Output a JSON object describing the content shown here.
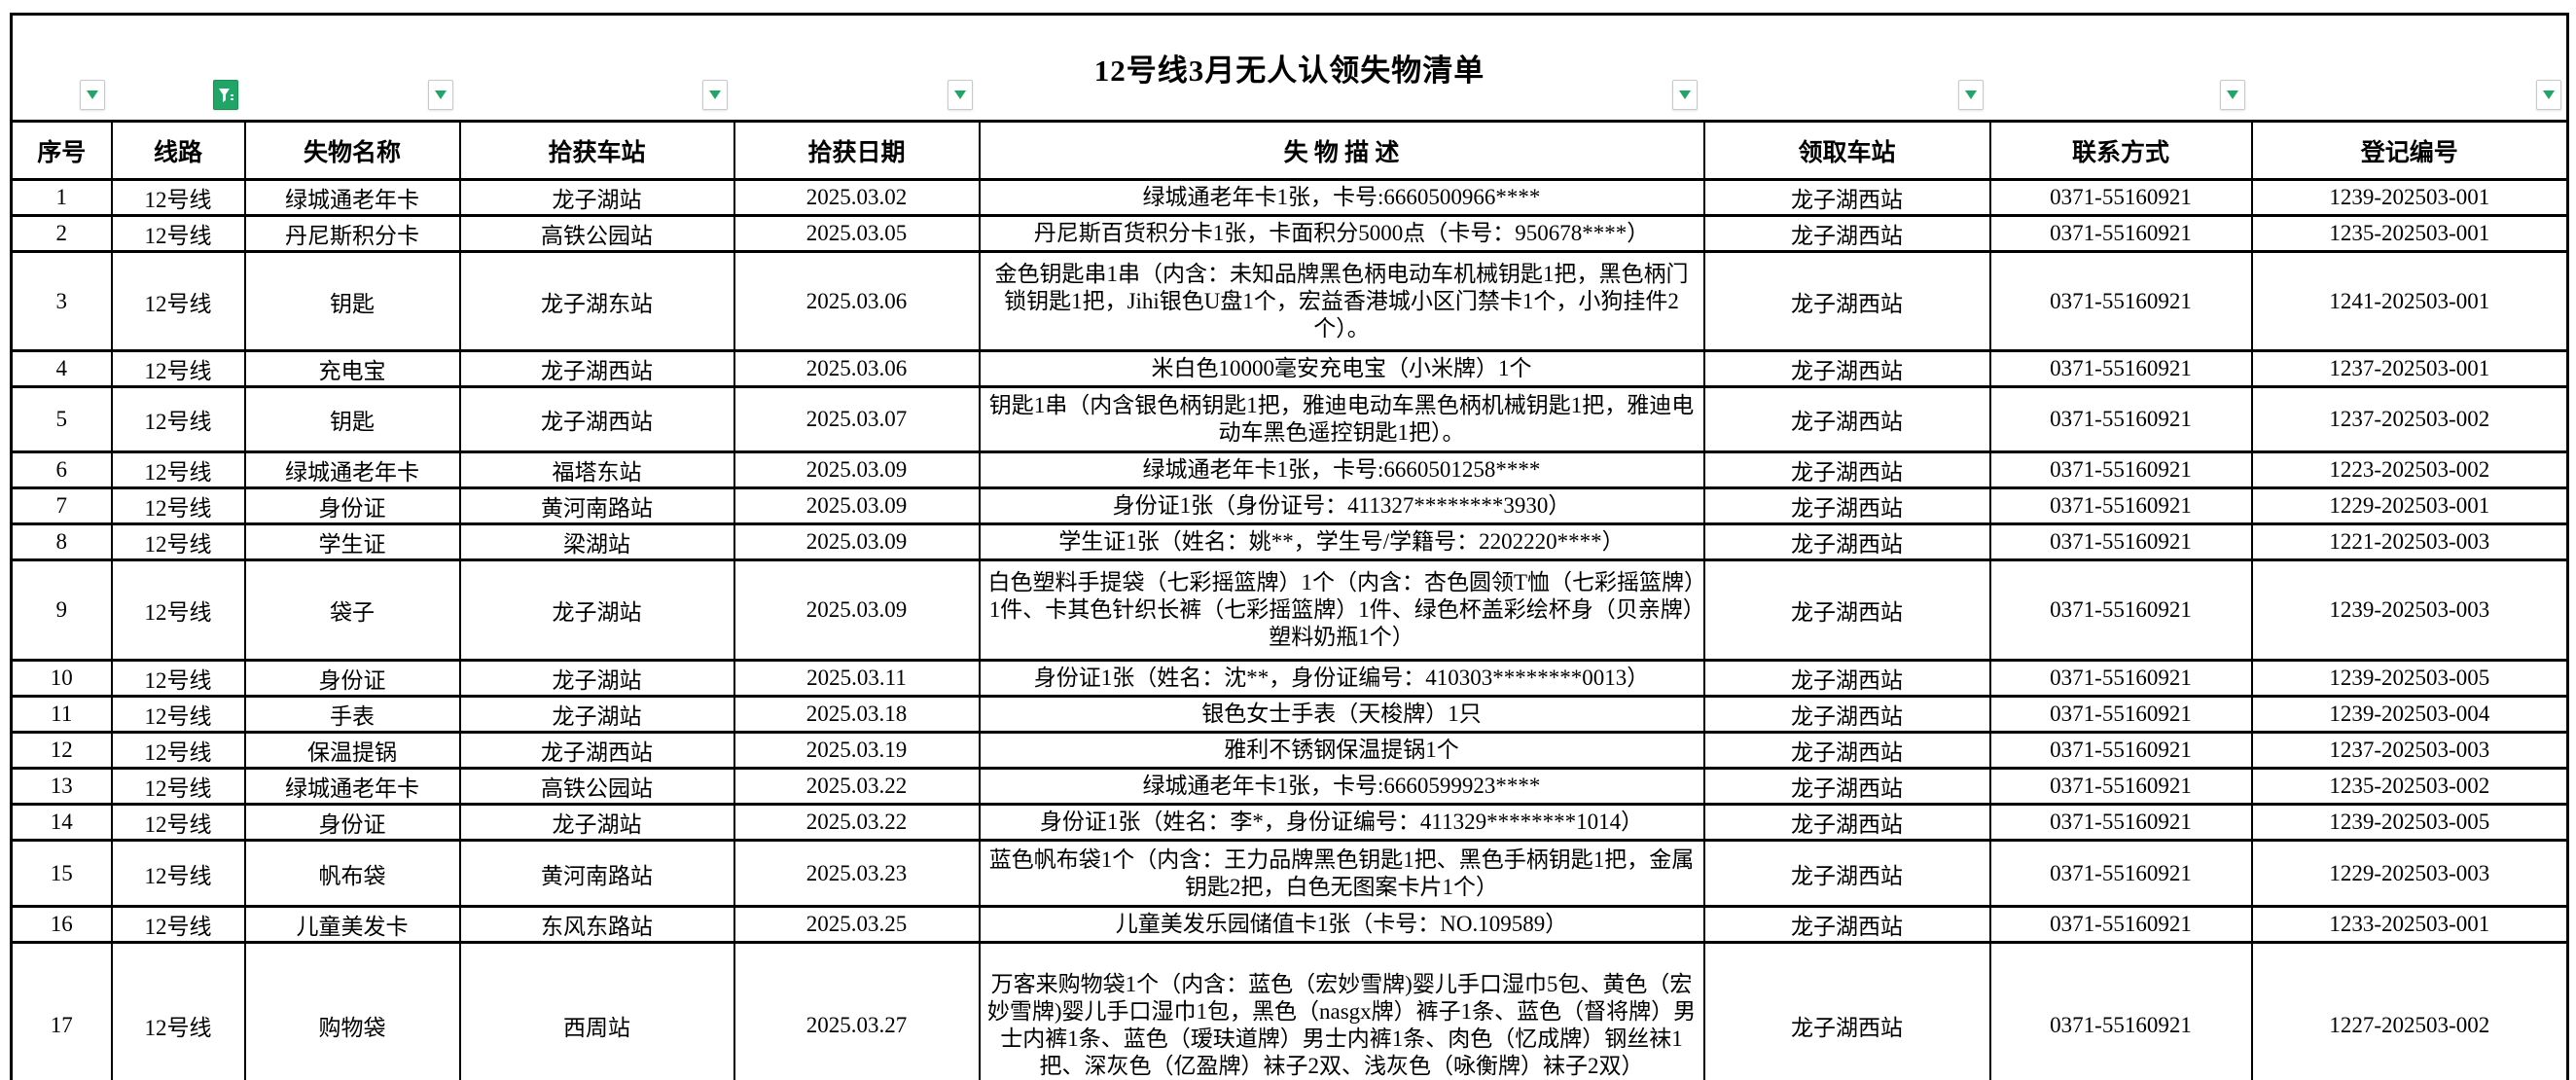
{
  "title": "12号线3月无人认领失物清单",
  "table": {
    "headers": [
      "序号",
      "线路",
      "失物名称",
      "拾获车站",
      "拾获日期",
      "失 物 描 述",
      "领取车站",
      "联系方式",
      "登记编号"
    ],
    "rows": [
      {
        "cells": [
          "1",
          "12号线",
          "绿城通老年卡",
          "龙子湖站",
          "2025.03.02",
          "绿城通老年卡1张，卡号:6660500966****",
          "龙子湖西站",
          "0371-55160921",
          "1239-202503-001"
        ]
      },
      {
        "cells": [
          "2",
          "12号线",
          "丹尼斯积分卡",
          "高铁公园站",
          "2025.03.05",
          "丹尼斯百货积分卡1张，卡面积分5000点（卡号：950678****）",
          "龙子湖西站",
          "0371-55160921",
          "1235-202503-001"
        ]
      },
      {
        "cells": [
          "3",
          "12号线",
          "钥匙",
          "龙子湖东站",
          "2025.03.06",
          "金色钥匙串1串（内含：未知品牌黑色柄电动车机械钥匙1把，黑色柄门锁钥匙1把，Jihi银色U盘1个，宏益香港城小区门禁卡1个，小狗挂件2个）。",
          "龙子湖西站",
          "0371-55160921",
          "1241-202503-001"
        ]
      },
      {
        "cells": [
          "4",
          "12号线",
          "充电宝",
          "龙子湖西站",
          "2025.03.06",
          "米白色10000毫安充电宝（小米牌）1个",
          "龙子湖西站",
          "0371-55160921",
          "1237-202503-001"
        ]
      },
      {
        "cells": [
          "5",
          "12号线",
          "钥匙",
          "龙子湖西站",
          "2025.03.07",
          "钥匙1串（内含银色柄钥匙1把，雅迪电动车黑色柄机械钥匙1把，雅迪电动车黑色遥控钥匙1把）。",
          "龙子湖西站",
          "0371-55160921",
          "1237-202503-002"
        ]
      },
      {
        "cells": [
          "6",
          "12号线",
          "绿城通老年卡",
          "福塔东站",
          "2025.03.09",
          "绿城通老年卡1张，卡号:6660501258****",
          "龙子湖西站",
          "0371-55160921",
          "1223-202503-002"
        ]
      },
      {
        "cells": [
          "7",
          "12号线",
          "身份证",
          "黄河南路站",
          "2025.03.09",
          "身份证1张（身份证号：411327********3930）",
          "龙子湖西站",
          "0371-55160921",
          "1229-202503-001"
        ]
      },
      {
        "cells": [
          "8",
          "12号线",
          "学生证",
          "梁湖站",
          "2025.03.09",
          "学生证1张（姓名：姚**，学生号/学籍号：2202220****）",
          "龙子湖西站",
          "0371-55160921",
          "1221-202503-003"
        ]
      },
      {
        "cells": [
          "9",
          "12号线",
          "袋子",
          "龙子湖站",
          "2025.03.09",
          "白色塑料手提袋（七彩摇篮牌）1个（内含：杏色圆领T恤（七彩摇篮牌）1件、卡其色针织长裤（七彩摇篮牌）1件、绿色杯盖彩绘杯身（贝亲牌）塑料奶瓶1个）",
          "龙子湖西站",
          "0371-55160921",
          "1239-202503-003"
        ]
      },
      {
        "cells": [
          "10",
          "12号线",
          "身份证",
          "龙子湖站",
          "2025.03.11",
          "身份证1张（姓名：沈**，身份证编号：410303********0013）",
          "龙子湖西站",
          "0371-55160921",
          "1239-202503-005"
        ]
      },
      {
        "cells": [
          "11",
          "12号线",
          "手表",
          "龙子湖站",
          "2025.03.18",
          "银色女士手表（天梭牌）1只",
          "龙子湖西站",
          "0371-55160921",
          "1239-202503-004"
        ]
      },
      {
        "cells": [
          "12",
          "12号线",
          "保温提锅",
          "龙子湖西站",
          "2025.03.19",
          "雅利不锈钢保温提锅1个",
          "龙子湖西站",
          "0371-55160921",
          "1237-202503-003"
        ]
      },
      {
        "cells": [
          "13",
          "12号线",
          "绿城通老年卡",
          "高铁公园站",
          "2025.03.22",
          "绿城通老年卡1张，卡号:6660599923****",
          "龙子湖西站",
          "0371-55160921",
          "1235-202503-002"
        ]
      },
      {
        "cells": [
          "14",
          "12号线",
          "身份证",
          "龙子湖站",
          "2025.03.22",
          "身份证1张（姓名：李*，身份证编号：411329********1014）",
          "龙子湖西站",
          "0371-55160921",
          "1239-202503-005"
        ]
      },
      {
        "cells": [
          "15",
          "12号线",
          "帆布袋",
          "黄河南路站",
          "2025.03.23",
          "蓝色帆布袋1个（内含：王力品牌黑色钥匙1把、黑色手柄钥匙1把，金属钥匙2把，白色无图案卡片1个）",
          "龙子湖西站",
          "0371-55160921",
          "1229-202503-003"
        ]
      },
      {
        "cells": [
          "16",
          "12号线",
          "儿童美发卡",
          "东风东路站",
          "2025.03.25",
          "儿童美发乐园储值卡1张（卡号：NO.109589）",
          "龙子湖西站",
          "0371-55160921",
          "1233-202503-001"
        ]
      },
      {
        "cells": [
          "17",
          "12号线",
          "购物袋",
          "西周站",
          "2025.03.27",
          "万客来购物袋1个（内含：蓝色（宏妙雪牌)婴儿手口湿巾5包、黄色（宏妙雪牌)婴儿手口湿巾1包，黑色（nasgx牌）裤子1条、蓝色（督将牌）男士内裤1条、蓝色（瑷玞道牌）男士内裤1条、肉色（忆成牌）钢丝袜1把、深灰色（亿盈牌）袜子2双、浅灰色（咏衡牌）袜子2双）",
          "龙子湖西站",
          "0371-55160921",
          "1227-202503-002"
        ]
      }
    ]
  },
  "filters": [
    {
      "column": "序号",
      "state": "normal",
      "icon": "filter-dropdown-icon"
    },
    {
      "column": "线路",
      "state": "filtered",
      "icon": "filter-funnel-icon"
    },
    {
      "column": "失物名称",
      "state": "normal",
      "icon": "filter-dropdown-icon"
    },
    {
      "column": "拾获车站",
      "state": "normal",
      "icon": "filter-dropdown-icon"
    },
    {
      "column": "拾获日期",
      "state": "normal",
      "icon": "filter-dropdown-icon"
    },
    {
      "column": "失物描述",
      "state": "normal",
      "icon": "filter-dropdown-icon"
    },
    {
      "column": "领取车站",
      "state": "normal",
      "icon": "filter-dropdown-icon"
    },
    {
      "column": "联系方式",
      "state": "normal",
      "icon": "filter-dropdown-icon"
    },
    {
      "column": "登记编号",
      "state": "normal",
      "icon": "filter-dropdown-icon"
    }
  ],
  "colors": {
    "filter_green": "#21a567",
    "border_black": "#000000",
    "background": "#ffffff"
  }
}
